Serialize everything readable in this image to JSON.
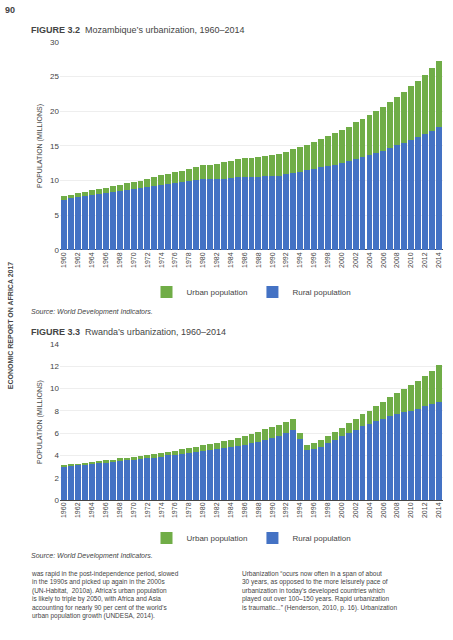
{
  "chart_data": [
    {
      "type": "bar",
      "stacked": true,
      "title": "FIGURE 3.2",
      "subtitle": "Mozambique’s urbanization, 1960–2014",
      "ylabel": "POPULATION (MILLIONS)",
      "categories": [
        "1960",
        null,
        "1962",
        null,
        "1964",
        null,
        "1966",
        null,
        "1968",
        null,
        "1970",
        null,
        "1972",
        null,
        "1974",
        null,
        "1976",
        null,
        "1978",
        null,
        "1980",
        null,
        "1982",
        null,
        "1984",
        null,
        "1986",
        null,
        "1988",
        null,
        "1990",
        null,
        "1992",
        null,
        "1994",
        null,
        "1996",
        null,
        "1998",
        null,
        "2000",
        null,
        "2002",
        null,
        "2004",
        null,
        "2006",
        null,
        "2008",
        null,
        "2010",
        null,
        "2012",
        null,
        "2014"
      ],
      "series": [
        {
          "name": "Rural population",
          "color": "#4472c4",
          "values": [
            7.25,
            7.45,
            7.6,
            7.75,
            7.9,
            8.05,
            8.2,
            8.35,
            8.5,
            8.65,
            8.8,
            8.9,
            9.05,
            9.2,
            9.35,
            9.5,
            9.6,
            9.75,
            9.9,
            10.1,
            10.25,
            10.2,
            10.2,
            10.3,
            10.4,
            10.5,
            10.5,
            10.5,
            10.5,
            10.6,
            10.6,
            10.7,
            10.9,
            11.1,
            11.3,
            11.5,
            11.7,
            11.9,
            12.1,
            12.3,
            12.5,
            12.8,
            13.1,
            13.4,
            13.7,
            14.0,
            14.3,
            14.7,
            15.1,
            15.5,
            15.9,
            16.3,
            16.7,
            17.2,
            17.7
          ]
        },
        {
          "name": "Urban population",
          "color": "#70ad47",
          "values": [
            0.5,
            0.55,
            0.6,
            0.65,
            0.7,
            0.75,
            0.8,
            0.85,
            0.9,
            0.95,
            1.0,
            1.1,
            1.2,
            1.3,
            1.4,
            1.5,
            1.6,
            1.7,
            1.8,
            1.9,
            2.0,
            2.1,
            2.2,
            2.4,
            2.5,
            2.6,
            2.7,
            2.8,
            2.9,
            3.0,
            3.1,
            3.2,
            3.3,
            3.4,
            3.5,
            3.7,
            3.9,
            4.1,
            4.3,
            4.5,
            4.8,
            5.0,
            5.3,
            5.5,
            5.8,
            6.0,
            6.3,
            6.6,
            6.9,
            7.3,
            7.7,
            8.1,
            8.6,
            9.0,
            9.5
          ]
        }
      ],
      "ylim": [
        0,
        30
      ],
      "yticks": [
        0,
        5,
        10,
        15,
        20,
        25,
        30
      ],
      "grid": true,
      "legend": "bottom",
      "annotations": [
        "Source: World Development Indicators.",
        "90",
        "ECONOMIC REPORT ON AFRICA 2017"
      ]
    },
    {
      "type": "bar",
      "stacked": true,
      "title": "FIGURE 3.3",
      "subtitle": "Rwanda’s urbanization, 1960–2014",
      "ylabel": "POPULATION (MILLIONS)",
      "categories": [
        "1960",
        null,
        "1962",
        null,
        "1964",
        null,
        "1966",
        null,
        "1968",
        null,
        "1970",
        null,
        "1972",
        null,
        "1974",
        null,
        "1976",
        null,
        "1978",
        null,
        "1980",
        null,
        "1982",
        null,
        "1984",
        null,
        "1986",
        null,
        "1988",
        null,
        "1990",
        null,
        "1992",
        null,
        "1994",
        null,
        "1996",
        null,
        "1998",
        null,
        "2000",
        null,
        "2002",
        null,
        "2004",
        null,
        "2006",
        null,
        "2008",
        null,
        "2010",
        null,
        "2012",
        null,
        "2014"
      ],
      "series": [
        {
          "name": "Rural population",
          "color": "#4472c4",
          "values": [
            3.0,
            3.05,
            3.1,
            3.15,
            3.2,
            3.3,
            3.35,
            3.4,
            3.5,
            3.55,
            3.6,
            3.65,
            3.75,
            3.8,
            3.9,
            4.0,
            4.05,
            4.15,
            4.25,
            4.3,
            4.4,
            4.5,
            4.55,
            4.65,
            4.75,
            4.85,
            4.95,
            5.1,
            5.25,
            5.4,
            5.6,
            5.75,
            6.0,
            6.3,
            5.5,
            4.5,
            4.6,
            4.8,
            5.1,
            5.4,
            5.7,
            6.0,
            6.3,
            6.6,
            6.8,
            7.1,
            7.3,
            7.5,
            7.7,
            7.9,
            8.0,
            8.2,
            8.4,
            8.6,
            8.8
          ]
        },
        {
          "name": "Urban population",
          "color": "#70ad47",
          "values": [
            0.15,
            0.16,
            0.17,
            0.18,
            0.19,
            0.2,
            0.21,
            0.22,
            0.23,
            0.24,
            0.25,
            0.27,
            0.29,
            0.31,
            0.33,
            0.35,
            0.37,
            0.4,
            0.43,
            0.46,
            0.5,
            0.54,
            0.58,
            0.63,
            0.68,
            0.73,
            0.78,
            0.83,
            0.88,
            0.93,
            0.98,
            1.0,
            1.0,
            1.0,
            0.55,
            0.45,
            0.5,
            0.55,
            0.6,
            0.7,
            0.8,
            0.9,
            1.0,
            1.1,
            1.2,
            1.3,
            1.5,
            1.7,
            1.9,
            2.1,
            2.3,
            2.5,
            2.7,
            3.0,
            3.3
          ]
        }
      ],
      "ylim": [
        0,
        14
      ],
      "yticks": [
        0,
        2,
        4,
        6,
        8,
        10,
        12,
        14
      ],
      "grid": true,
      "legend": "bottom",
      "annotations": [
        "Source: World Development Indicators.",
        "was rapid in the post-independence period, slowed\nin the 1990s and picked up again in the 2000s\n(UN-Habitat,  2010a). Africa’s urban population\nis likely to triple by 2050, with Africa and Asia\naccounting for nearly 90 per cent of the world’s\nurban population growth (UNDESA, 2014).",
        "Urbanization “ocurs now often in a span of about\n30 years, as opposed to the more leisurely pace of\nurbanization in today’s developed countries which\nplayed out over 100–150 years. Rapid urbanization\nis traumatic...” (Henderson, 2010, p. 16). Urbanization"
      ]
    }
  ]
}
